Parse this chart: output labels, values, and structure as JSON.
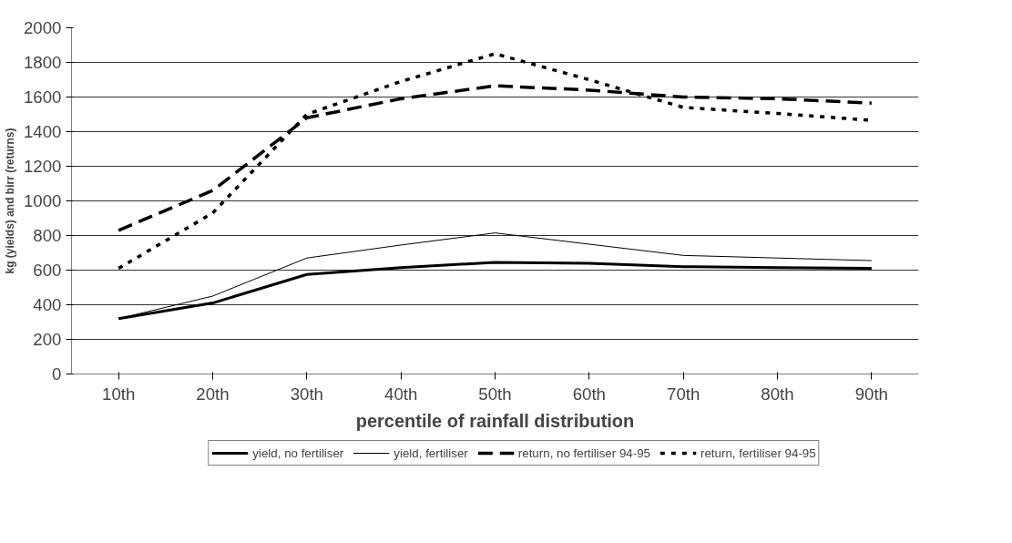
{
  "chart_data": {
    "type": "line",
    "xlabel": "percentile of rainfall distribution",
    "ylabel": "kg (yields) and birr (returns)",
    "categories": [
      "10th",
      "20th",
      "30th",
      "40th",
      "50th",
      "60th",
      "70th",
      "80th",
      "90th"
    ],
    "ylim": [
      0,
      2000
    ],
    "yticks": [
      0,
      200,
      400,
      600,
      800,
      1000,
      1200,
      1400,
      1600,
      1800,
      2000
    ],
    "grid": "y",
    "legend": "bottom",
    "marker": "none",
    "series": [
      {
        "name": "yield, no fertiliser",
        "color": "#000000",
        "line_style": "solid",
        "values": [
          320,
          410,
          575,
          615,
          645,
          640,
          620,
          615,
          610
        ]
      },
      {
        "name": "yield, fertiliser",
        "color": "#000000",
        "line_style": "solid",
        "values": [
          320,
          450,
          670,
          745,
          815,
          750,
          685,
          670,
          655
        ]
      },
      {
        "name": "return, no fertiliser 94-95",
        "color": "#000000",
        "line_style": "dashed",
        "values": [
          830,
          1060,
          1480,
          1590,
          1665,
          1640,
          1600,
          1590,
          1565
        ]
      },
      {
        "name": "return, fertiliser 94-95",
        "color": "#000000",
        "line_style": "dotted",
        "values": [
          610,
          930,
          1500,
          1690,
          1850,
          1700,
          1540,
          1505,
          1465
        ]
      }
    ]
  }
}
